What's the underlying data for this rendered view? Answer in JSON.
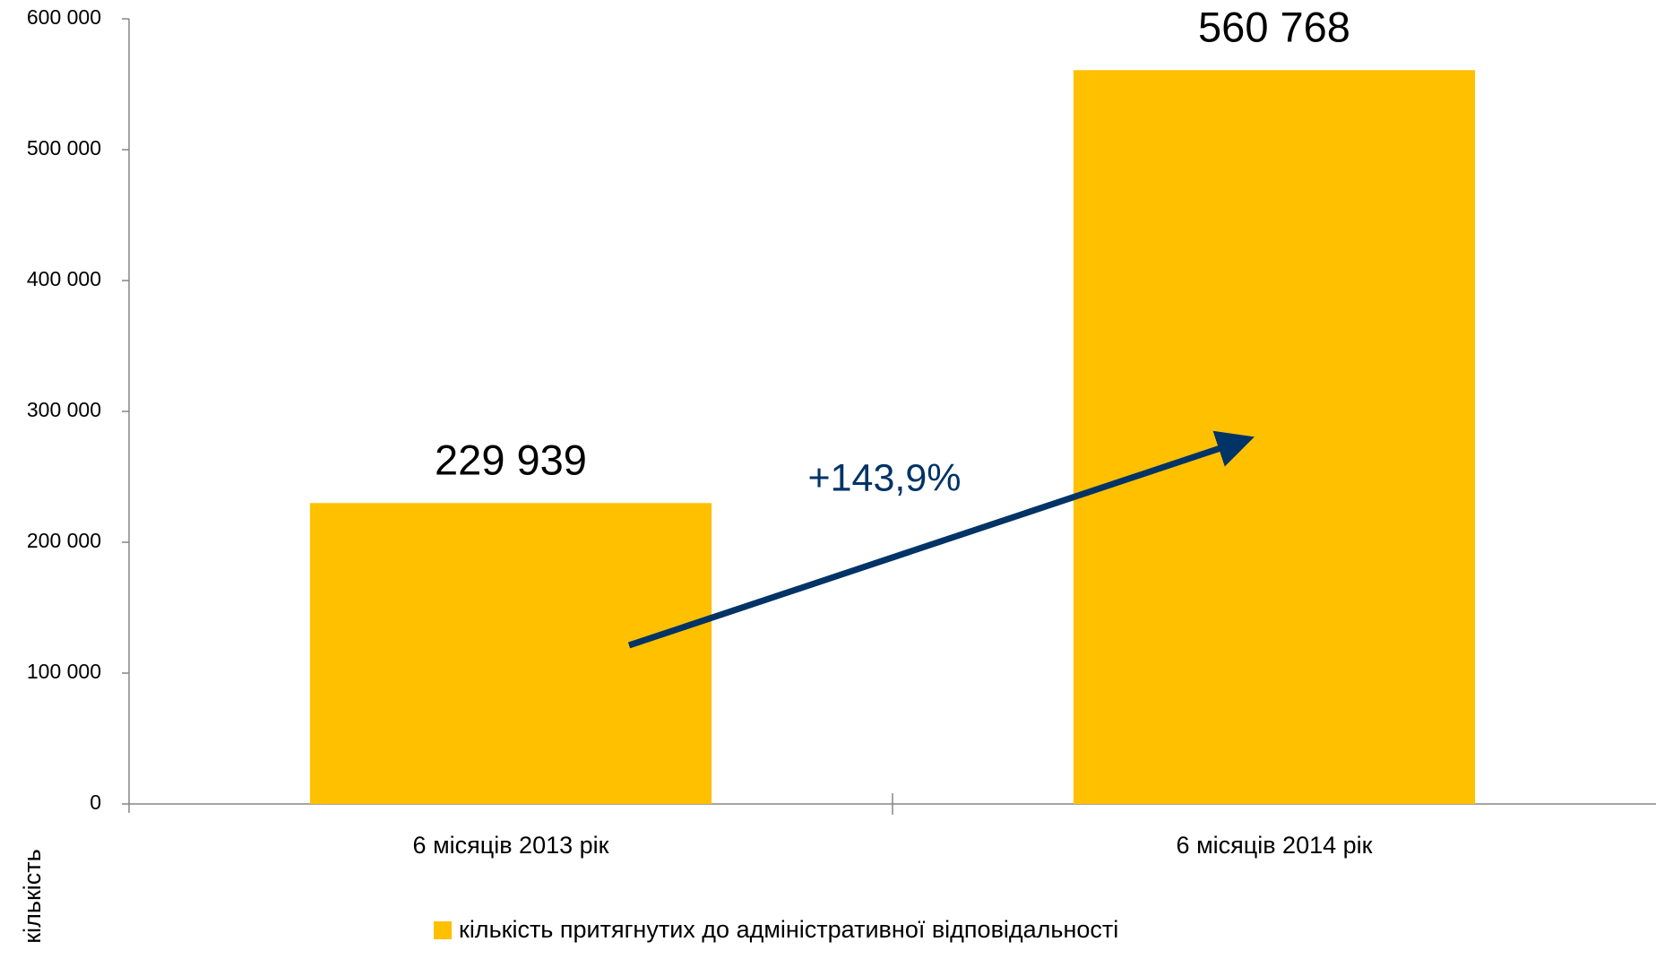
{
  "chart_data": {
    "type": "bar",
    "categories": [
      "6 місяців 2013 рік",
      "6 місяців 2014 рік"
    ],
    "series": [
      {
        "name": "кількість притягнутих до адміністративної відповідальності",
        "color": "#ffc000",
        "values": [
          229939,
          560768
        ],
        "value_labels": [
          "229 939",
          "560 768"
        ]
      }
    ],
    "ylabel": "кількість",
    "annotation": "+143,9%",
    "ylim": [
      0,
      600000
    ],
    "yticks": [
      {
        "value": 0,
        "label": "0"
      },
      {
        "value": 100000,
        "label": "100 000"
      },
      {
        "value": 200000,
        "label": "200 000"
      },
      {
        "value": 300000,
        "label": "300 000"
      },
      {
        "value": 400000,
        "label": "400 000"
      },
      {
        "value": 500000,
        "label": "500 000"
      },
      {
        "value": 600000,
        "label": "600 000"
      }
    ],
    "grid": false,
    "legend": "bottom"
  }
}
